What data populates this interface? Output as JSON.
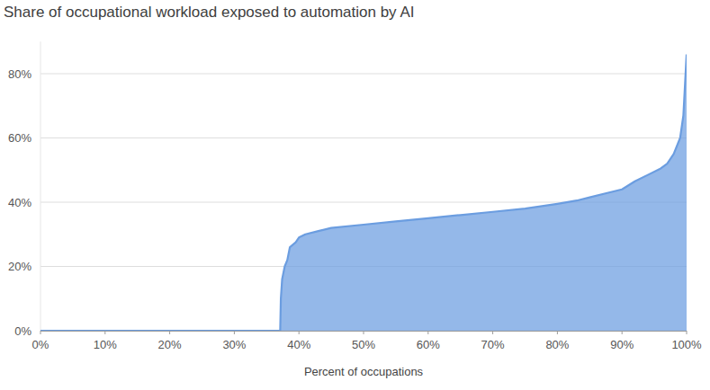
{
  "chart_data": {
    "type": "area",
    "title": "Share of occupational workload exposed to automation by AI",
    "x_label": "Percent of occupations",
    "x": [
      0,
      37.1,
      37.2,
      37.4,
      37.8,
      38.2,
      38.6,
      39.5,
      40,
      41,
      43,
      45,
      50,
      55,
      60,
      65,
      70,
      75,
      80,
      83,
      85,
      88,
      90,
      92,
      94,
      96,
      97,
      98,
      99,
      99.5,
      100
    ],
    "values": [
      0,
      0,
      10,
      16,
      20,
      22,
      26,
      27.5,
      29,
      30,
      31,
      32,
      33,
      34,
      35,
      36,
      37,
      38,
      39.5,
      40.5,
      41.5,
      43,
      44,
      46.5,
      48.5,
      50.5,
      52,
      55,
      60,
      67,
      86
    ],
    "color": "#6b9de0",
    "xlim": [
      0,
      100
    ],
    "xticks": [
      {
        "value": 0,
        "label": "0%"
      },
      {
        "value": 10,
        "label": "10%"
      },
      {
        "value": 20,
        "label": "20%"
      },
      {
        "value": 30,
        "label": "30%"
      },
      {
        "value": 40,
        "label": "40%"
      },
      {
        "value": 50,
        "label": "50%"
      },
      {
        "value": 60,
        "label": "60%"
      },
      {
        "value": 70,
        "label": "70%"
      },
      {
        "value": 80,
        "label": "80%"
      },
      {
        "value": 90,
        "label": "90%"
      },
      {
        "value": 100,
        "label": "100%"
      }
    ],
    "ylim": [
      0,
      90
    ],
    "yticks": [
      {
        "value": 0,
        "label": "0%"
      },
      {
        "value": 20,
        "label": "20%"
      },
      {
        "value": 40,
        "label": "40%"
      },
      {
        "value": 60,
        "label": "60%"
      },
      {
        "value": 80,
        "label": "80%"
      }
    ],
    "grid": true
  }
}
